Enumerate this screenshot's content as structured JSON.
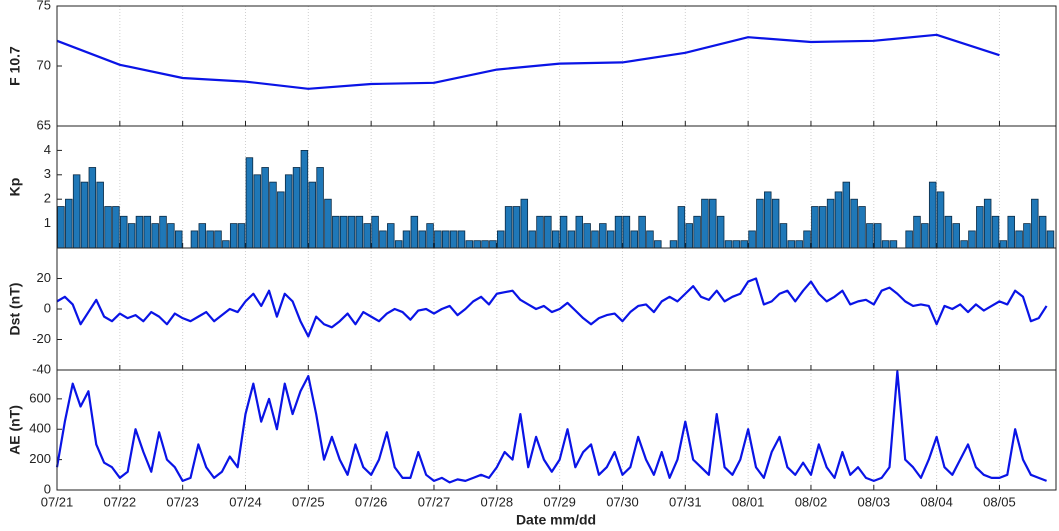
{
  "chart_data": [
    {
      "type": "line",
      "ylabel": "F 10.7",
      "color": "#0a14e6",
      "ylim": [
        65,
        75
      ],
      "yticks": [
        65,
        70,
        75
      ],
      "xlim": [
        0,
        15.9
      ],
      "xticks": [
        0,
        1,
        2,
        3,
        4,
        5,
        6,
        7,
        8,
        9,
        10,
        11,
        12,
        13,
        14,
        15
      ],
      "grid": true,
      "x": [
        0,
        1,
        2,
        3,
        4,
        5,
        6,
        7,
        8,
        9,
        10,
        11,
        12,
        13,
        14,
        15
      ],
      "values": [
        72.1,
        70.1,
        69.0,
        68.7,
        68.1,
        68.5,
        68.6,
        69.7,
        70.2,
        70.3,
        71.1,
        72.4,
        72.0,
        72.1,
        72.6,
        70.9
      ]
    },
    {
      "type": "bar",
      "ylabel": "Kp",
      "color": "#1f78b8",
      "ylim": [
        0,
        5
      ],
      "yticks": [
        1,
        2,
        3,
        4
      ],
      "xlim": [
        0,
        15.9
      ],
      "xticks": [
        0,
        1,
        2,
        3,
        4,
        5,
        6,
        7,
        8,
        9,
        10,
        11,
        12,
        13,
        14,
        15
      ],
      "grid": true,
      "x": [
        0,
        0.125,
        0.25,
        0.375,
        0.5,
        0.625,
        0.75,
        0.875,
        1,
        1.125,
        1.25,
        1.375,
        1.5,
        1.625,
        1.75,
        1.875,
        2,
        2.125,
        2.25,
        2.375,
        2.5,
        2.625,
        2.75,
        2.875,
        3,
        3.125,
        3.25,
        3.375,
        3.5,
        3.625,
        3.75,
        3.875,
        4,
        4.125,
        4.25,
        4.375,
        4.5,
        4.625,
        4.75,
        4.875,
        5,
        5.125,
        5.25,
        5.375,
        5.5,
        5.625,
        5.75,
        5.875,
        6,
        6.125,
        6.25,
        6.375,
        6.5,
        6.625,
        6.75,
        6.875,
        7,
        7.125,
        7.25,
        7.375,
        7.5,
        7.625,
        7.75,
        7.875,
        8,
        8.125,
        8.25,
        8.375,
        8.5,
        8.625,
        8.75,
        8.875,
        9,
        9.125,
        9.25,
        9.375,
        9.5,
        9.625,
        9.75,
        9.875,
        10,
        10.125,
        10.25,
        10.375,
        10.5,
        10.625,
        10.75,
        10.875,
        11,
        11.125,
        11.25,
        11.375,
        11.5,
        11.625,
        11.75,
        11.875,
        12,
        12.125,
        12.25,
        12.375,
        12.5,
        12.625,
        12.75,
        12.875,
        13,
        13.125,
        13.25,
        13.375,
        13.5,
        13.625,
        13.75,
        13.875,
        14,
        14.125,
        14.25,
        14.375,
        14.5,
        14.625,
        14.75,
        14.875,
        15,
        15.125,
        15.25,
        15.375,
        15.5,
        15.625,
        15.75
      ],
      "values": [
        1.7,
        2,
        3,
        2.7,
        3.3,
        2.7,
        1.7,
        1.7,
        1.3,
        1,
        1.3,
        1.3,
        1,
        1.3,
        1,
        0.7,
        0,
        0.7,
        1,
        0.7,
        0.7,
        0.3,
        1,
        1,
        3.7,
        3,
        3.3,
        2.7,
        2.3,
        3,
        3.3,
        4,
        2.7,
        3.3,
        2,
        1.3,
        1.3,
        1.3,
        1.3,
        1,
        1.3,
        0.7,
        1,
        0.3,
        0.7,
        1.3,
        0.7,
        1,
        0.7,
        0.7,
        0.7,
        0.7,
        0.3,
        0.3,
        0.3,
        0.3,
        0.7,
        1.7,
        1.7,
        2,
        0.7,
        1.3,
        1.3,
        0.7,
        1.3,
        0.7,
        1.3,
        1,
        0.7,
        1,
        0.7,
        1.3,
        1.3,
        0.7,
        1.3,
        0.7,
        0.3,
        0,
        0.3,
        1.7,
        1,
        1.3,
        2,
        2,
        1.3,
        0.3,
        0.3,
        0.3,
        0.7,
        2,
        2.3,
        2,
        1,
        0.3,
        0.3,
        0.7,
        1.7,
        1.7,
        2,
        2.3,
        2.7,
        2,
        1.7,
        1,
        1,
        0.3,
        0.3,
        0,
        0.7,
        1.3,
        1,
        2.7,
        2.3,
        1.3,
        1,
        0.3,
        0.7,
        1.7,
        2,
        1.3,
        0.3,
        1.3,
        0.7,
        1,
        2,
        1.3,
        0.7
      ]
    },
    {
      "type": "line",
      "ylabel": "Dst (nT)",
      "color": "#0a14e6",
      "ylim": [
        -40,
        40
      ],
      "yticks": [
        -40,
        -20,
        0,
        20
      ],
      "xlim": [
        0,
        15.9
      ],
      "xticks": [
        0,
        1,
        2,
        3,
        4,
        5,
        6,
        7,
        8,
        9,
        10,
        11,
        12,
        13,
        14,
        15
      ],
      "grid": true,
      "x": [
        0,
        0.125,
        0.25,
        0.375,
        0.5,
        0.625,
        0.75,
        0.875,
        1,
        1.125,
        1.25,
        1.375,
        1.5,
        1.625,
        1.75,
        1.875,
        2,
        2.125,
        2.25,
        2.375,
        2.5,
        2.625,
        2.75,
        2.875,
        3,
        3.125,
        3.25,
        3.375,
        3.5,
        3.625,
        3.75,
        3.875,
        4,
        4.125,
        4.25,
        4.375,
        4.5,
        4.625,
        4.75,
        4.875,
        5,
        5.125,
        5.25,
        5.375,
        5.5,
        5.625,
        5.75,
        5.875,
        6,
        6.125,
        6.25,
        6.375,
        6.5,
        6.625,
        6.75,
        6.875,
        7,
        7.125,
        7.25,
        7.375,
        7.5,
        7.625,
        7.75,
        7.875,
        8,
        8.125,
        8.25,
        8.375,
        8.5,
        8.625,
        8.75,
        8.875,
        9,
        9.125,
        9.25,
        9.375,
        9.5,
        9.625,
        9.75,
        9.875,
        10,
        10.125,
        10.25,
        10.375,
        10.5,
        10.625,
        10.75,
        10.875,
        11,
        11.125,
        11.25,
        11.375,
        11.5,
        11.625,
        11.75,
        11.875,
        12,
        12.125,
        12.25,
        12.375,
        12.5,
        12.625,
        12.75,
        12.875,
        13,
        13.125,
        13.25,
        13.375,
        13.5,
        13.625,
        13.75,
        13.875,
        14,
        14.125,
        14.25,
        14.375,
        14.5,
        14.625,
        14.75,
        14.875,
        15,
        15.125,
        15.25,
        15.375,
        15.5,
        15.625,
        15.75
      ],
      "values": [
        5,
        8,
        3,
        -10,
        -2,
        6,
        -5,
        -8,
        -3,
        -6,
        -4,
        -8,
        -2,
        -5,
        -10,
        -3,
        -6,
        -8,
        -5,
        -2,
        -8,
        -4,
        0,
        -2,
        5,
        10,
        2,
        12,
        -5,
        10,
        5,
        -8,
        -18,
        -5,
        -10,
        -12,
        -8,
        -3,
        -10,
        -2,
        -5,
        -8,
        -3,
        0,
        -2,
        -7,
        -1,
        0,
        -3,
        0,
        2,
        -4,
        0,
        5,
        8,
        3,
        10,
        11,
        12,
        6,
        3,
        0,
        2,
        -2,
        0,
        4,
        -1,
        -6,
        -10,
        -6,
        -4,
        -3,
        -8,
        -2,
        2,
        3,
        -2,
        5,
        8,
        5,
        10,
        15,
        8,
        6,
        12,
        5,
        8,
        10,
        18,
        20,
        3,
        5,
        10,
        12,
        5,
        12,
        18,
        10,
        5,
        8,
        12,
        3,
        5,
        6,
        3,
        12,
        14,
        10,
        5,
        2,
        3,
        2,
        -10,
        2,
        0,
        3,
        -2,
        3,
        -1,
        2,
        5,
        3,
        12,
        8,
        -8,
        -6,
        2
      ]
    },
    {
      "type": "line",
      "ylabel": "AE (nT)",
      "xlabel": "Date  mm/dd",
      "color": "#0a14e6",
      "ylim": [
        0,
        790
      ],
      "yticks": [
        0,
        200,
        400,
        600
      ],
      "xlim": [
        0,
        15.9
      ],
      "grid": true,
      "xticks": [
        {
          "value": 0,
          "label": "07/21"
        },
        {
          "value": 1,
          "label": "07/22"
        },
        {
          "value": 2,
          "label": "07/23"
        },
        {
          "value": 3,
          "label": "07/24"
        },
        {
          "value": 4,
          "label": "07/25"
        },
        {
          "value": 5,
          "label": "07/26"
        },
        {
          "value": 6,
          "label": "07/27"
        },
        {
          "value": 7,
          "label": "07/28"
        },
        {
          "value": 8,
          "label": "07/29"
        },
        {
          "value": 9,
          "label": "07/30"
        },
        {
          "value": 10,
          "label": "07/31"
        },
        {
          "value": 11,
          "label": "08/01"
        },
        {
          "value": 12,
          "label": "08/02"
        },
        {
          "value": 13,
          "label": "08/03"
        },
        {
          "value": 14,
          "label": "08/04"
        },
        {
          "value": 15,
          "label": "08/05"
        }
      ],
      "x": [
        0,
        0.125,
        0.25,
        0.375,
        0.5,
        0.625,
        0.75,
        0.875,
        1,
        1.125,
        1.25,
        1.375,
        1.5,
        1.625,
        1.75,
        1.875,
        2,
        2.125,
        2.25,
        2.375,
        2.5,
        2.625,
        2.75,
        2.875,
        3,
        3.125,
        3.25,
        3.375,
        3.5,
        3.625,
        3.75,
        3.875,
        4,
        4.125,
        4.25,
        4.375,
        4.5,
        4.625,
        4.75,
        4.875,
        5,
        5.125,
        5.25,
        5.375,
        5.5,
        5.625,
        5.75,
        5.875,
        6,
        6.125,
        6.25,
        6.375,
        6.5,
        6.625,
        6.75,
        6.875,
        7,
        7.125,
        7.25,
        7.375,
        7.5,
        7.625,
        7.75,
        7.875,
        8,
        8.125,
        8.25,
        8.375,
        8.5,
        8.625,
        8.75,
        8.875,
        9,
        9.125,
        9.25,
        9.375,
        9.5,
        9.625,
        9.75,
        9.875,
        10,
        10.125,
        10.25,
        10.375,
        10.5,
        10.625,
        10.75,
        10.875,
        11,
        11.125,
        11.25,
        11.375,
        11.5,
        11.625,
        11.75,
        11.875,
        12,
        12.125,
        12.25,
        12.375,
        12.5,
        12.625,
        12.75,
        12.875,
        13,
        13.125,
        13.25,
        13.375,
        13.5,
        13.625,
        13.75,
        13.875,
        14,
        14.125,
        14.25,
        14.375,
        14.5,
        14.625,
        14.75,
        14.875,
        15,
        15.125,
        15.25,
        15.375,
        15.5,
        15.625,
        15.75
      ],
      "values": [
        150,
        450,
        700,
        550,
        650,
        300,
        180,
        150,
        80,
        120,
        400,
        250,
        120,
        380,
        200,
        150,
        60,
        80,
        300,
        150,
        80,
        120,
        220,
        150,
        500,
        700,
        450,
        600,
        400,
        700,
        500,
        650,
        750,
        500,
        200,
        350,
        200,
        100,
        300,
        150,
        100,
        200,
        380,
        150,
        80,
        80,
        250,
        100,
        60,
        80,
        50,
        70,
        60,
        80,
        100,
        80,
        150,
        250,
        200,
        500,
        150,
        350,
        200,
        120,
        200,
        400,
        150,
        250,
        300,
        100,
        150,
        250,
        100,
        150,
        350,
        200,
        100,
        250,
        80,
        200,
        450,
        200,
        150,
        100,
        500,
        150,
        100,
        200,
        400,
        150,
        80,
        250,
        350,
        150,
        100,
        180,
        100,
        300,
        150,
        80,
        250,
        100,
        150,
        80,
        60,
        80,
        150,
        780,
        200,
        150,
        80,
        200,
        350,
        150,
        100,
        200,
        300,
        150,
        100,
        80,
        80,
        100,
        400,
        200,
        100,
        80,
        60
      ]
    }
  ]
}
